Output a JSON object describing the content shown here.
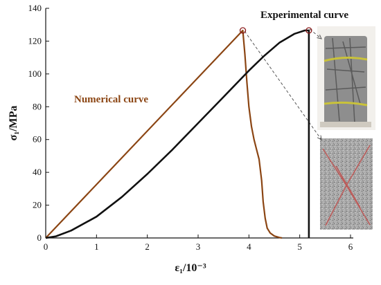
{
  "chart_data": {
    "type": "line",
    "xlabel": "ε₁/10⁻³",
    "ylabel": "σ₁/MPa",
    "xlim": [
      0,
      6
    ],
    "ylim": [
      0,
      140
    ],
    "x_ticks": [
      0,
      1,
      2,
      3,
      4,
      5,
      6
    ],
    "y_ticks": [
      0,
      20,
      40,
      60,
      80,
      100,
      120,
      140
    ],
    "grid": false,
    "legend": "none",
    "series": [
      {
        "color": "#8b4513",
        "x": [
          0,
          3.88,
          3.92,
          3.96,
          4.0,
          4.05,
          4.1,
          4.15,
          4.2,
          4.25,
          4.28,
          4.32,
          4.36,
          4.42,
          4.5,
          4.6,
          4.65
        ],
        "y": [
          0,
          126.5,
          112,
          95,
          80,
          68,
          60,
          54,
          48,
          35,
          22,
          12,
          6,
          3,
          1.2,
          0.3,
          0
        ]
      },
      {
        "color": "#111111",
        "x": [
          0,
          0.2,
          0.5,
          1.0,
          1.5,
          2.0,
          2.5,
          3.0,
          3.5,
          4.0,
          4.3,
          4.6,
          4.9,
          5.1,
          5.18,
          5.18
        ],
        "y": [
          0,
          1.0,
          4.5,
          13,
          25,
          39,
          54,
          70,
          86,
          102,
          111,
          119,
          124.5,
          126.5,
          126.5,
          0
        ]
      }
    ],
    "annotations": [
      {
        "text": "Experimental curve",
        "color": "#111111"
      },
      {
        "text": "Numerical curve",
        "color": "#8b4513"
      }
    ],
    "peak_markers": [
      {
        "x": 3.88,
        "y": 126.5,
        "color": "#8b1a1a"
      },
      {
        "x": 5.18,
        "y": 126.5,
        "color": "#8b1a1a"
      }
    ]
  },
  "icons": {
    "photo_specimen": "fractured-cylinder-photo",
    "photo_simulation": "numerical-crack-pattern"
  }
}
